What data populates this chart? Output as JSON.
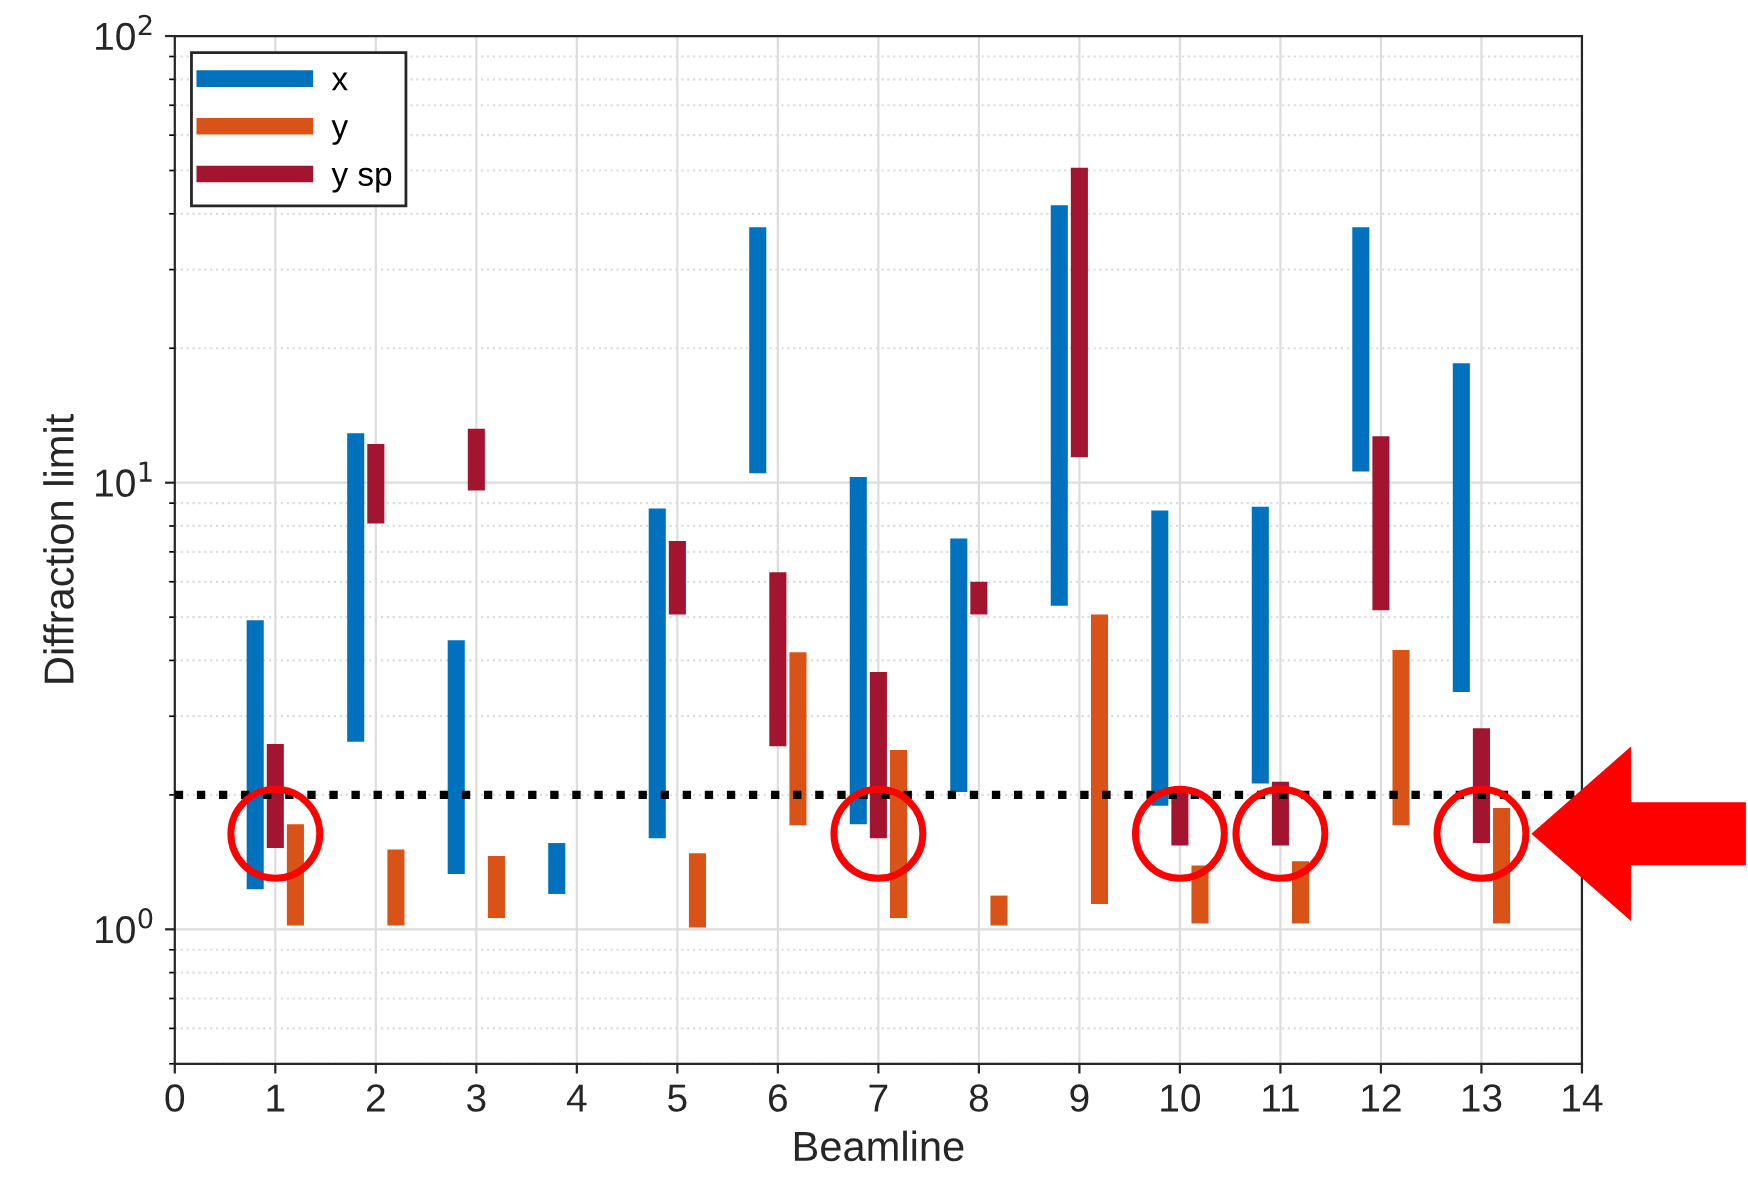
{
  "chart_data": {
    "type": "bar",
    "xlabel": "Beamline",
    "ylabel": "Diffraction limit",
    "log": "y",
    "grid": true,
    "legend": "top left",
    "xlim": [
      0,
      14
    ],
    "xticks": [
      0,
      1,
      2,
      3,
      4,
      5,
      6,
      7,
      8,
      9,
      10,
      11,
      12,
      13,
      14
    ],
    "ylim": [
      0.5,
      100
    ],
    "yticks": [
      {
        "value": 1,
        "label": "10$^{0}$"
      },
      {
        "value": 10,
        "label": "10$^{1}$"
      },
      {
        "value": 100,
        "label": "10$^{2}$"
      }
    ],
    "series": [
      {
        "name": "x",
        "color": "#0072bd",
        "x": [
          0.8,
          1.8,
          2.8,
          3.8,
          4.8,
          5.8,
          6.8,
          7.8,
          8.8,
          9.8,
          10.8,
          11.8,
          12.8
        ],
        "base": [
          1.23,
          2.63,
          1.33,
          1.2,
          1.6,
          10.5,
          1.72,
          2.03,
          5.3,
          1.89,
          2.12,
          10.6,
          3.4
        ],
        "values": [
          3.69,
          10.27,
          3.11,
          0.36,
          7.15,
          26.8,
          8.58,
          5.47,
          36.5,
          6.77,
          6.71,
          26.7,
          15.1
        ]
      },
      {
        "name": "y",
        "color": "#d95319",
        "x": [
          1.2,
          2.2,
          3.2,
          4.2,
          5.2,
          6.2,
          7.2,
          8.2,
          9.2,
          10.2,
          11.2,
          12.2,
          13.2
        ],
        "base": [
          1.02,
          1.02,
          1.06,
          null,
          1.01,
          1.71,
          1.06,
          1.02,
          1.14,
          1.03,
          1.03,
          1.71,
          1.03
        ],
        "values": [
          0.7,
          0.49,
          0.4,
          null,
          0.47,
          2.46,
          1.46,
          0.17,
          3.93,
          0.36,
          0.39,
          2.51,
          0.84
        ]
      },
      {
        "name": "y sp",
        "color": "#a2142f",
        "x": [
          1,
          2,
          3,
          4,
          5,
          6,
          7,
          8,
          9,
          10,
          11,
          12,
          13
        ],
        "base": [
          1.52,
          8.1,
          9.6,
          null,
          5.07,
          2.57,
          1.6,
          5.07,
          11.4,
          1.54,
          1.54,
          5.18,
          1.56
        ],
        "values": [
          1.08,
          4.1,
          3.6,
          null,
          2.33,
          3.73,
          2.17,
          0.93,
          39.3,
          0.49,
          0.6,
          7.52,
          1.26
        ]
      }
    ],
    "ref_lines": [
      {
        "axis": "y",
        "value": 2,
        "color": "#000000",
        "line_style": "dotted"
      }
    ]
  }
}
